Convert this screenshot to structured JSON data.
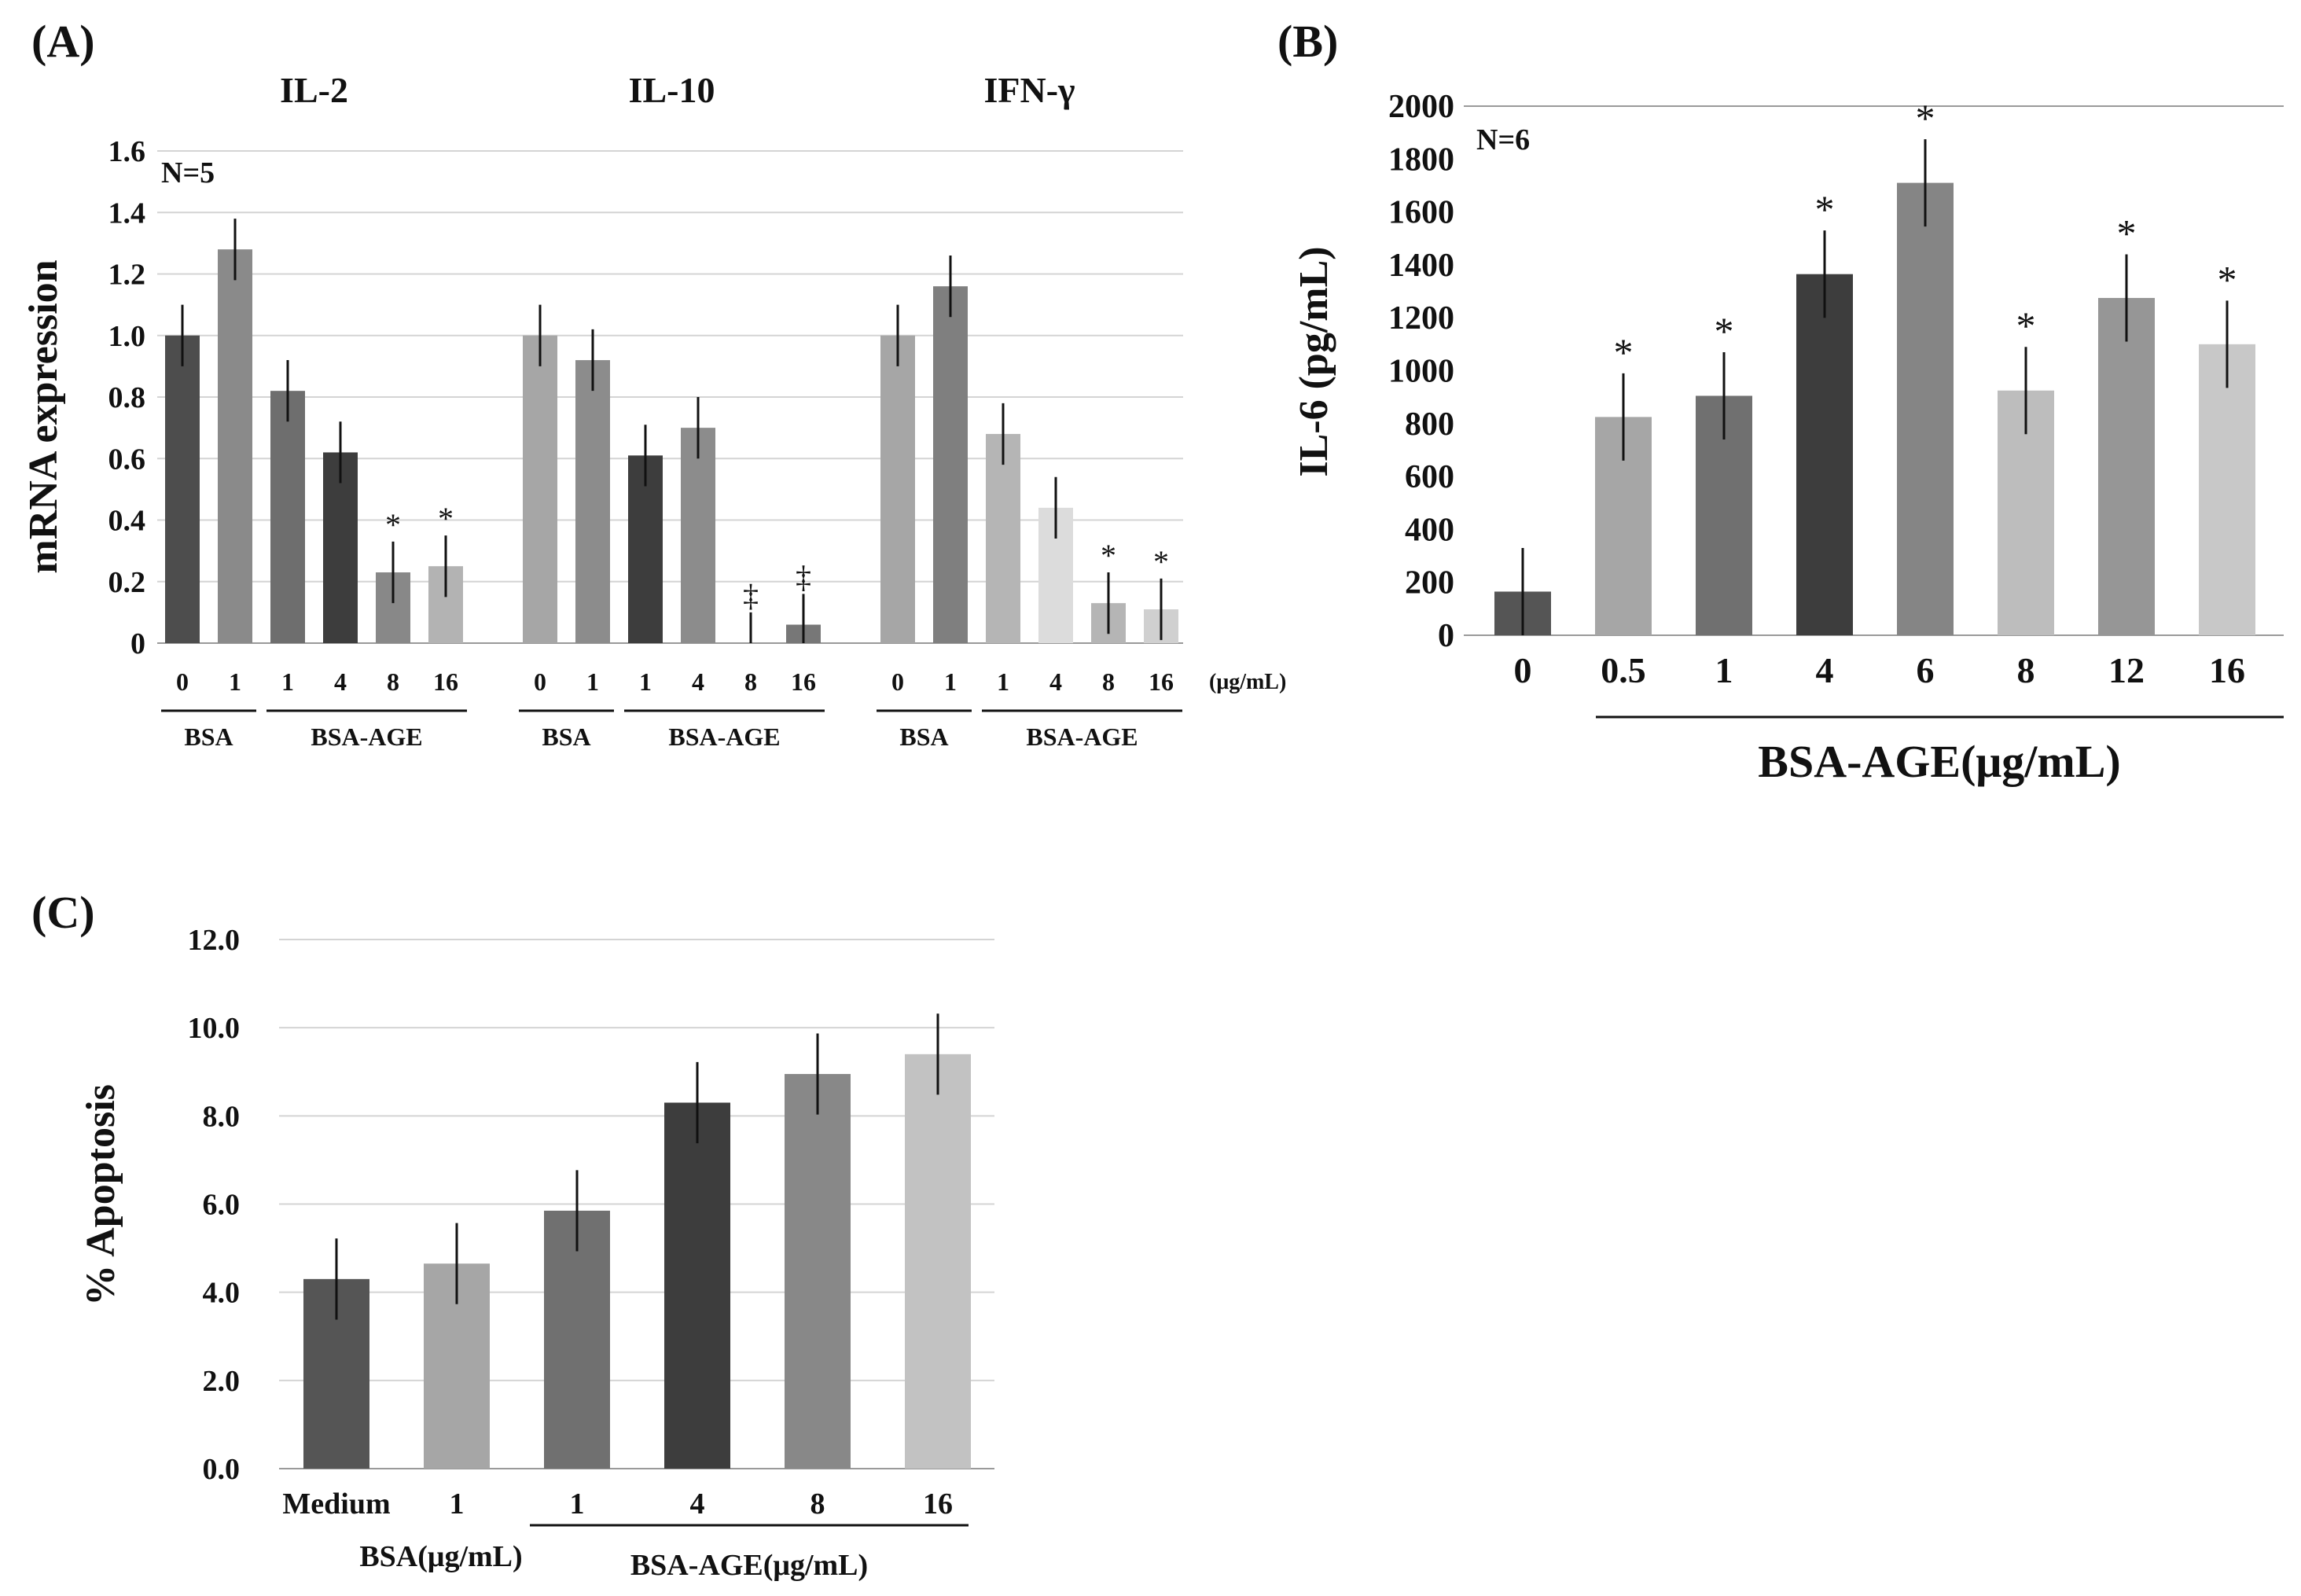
{
  "panels": {
    "a": "(A)",
    "b": "(B)",
    "c": "(C)"
  },
  "chart_data": [
    {
      "id": "A",
      "type": "bar",
      "ylabel": "mRNA expression",
      "ylim": [
        0,
        1.6
      ],
      "yticks": [
        "0",
        "0.2",
        "0.4",
        "0.6",
        "0.8",
        "1.0",
        "1.2",
        "1.4",
        "1.6"
      ],
      "grid": true,
      "annotation": "N=5",
      "unit": "(μg/mL)",
      "groups": [
        {
          "title": "IL-2",
          "categories": [
            "0",
            "1",
            "1",
            "4",
            "8",
            "16"
          ],
          "values": [
            1.0,
            1.28,
            0.82,
            0.62,
            0.23,
            0.25
          ],
          "errors": [
            0.1,
            0.1,
            0.1,
            0.1,
            0.1,
            0.1
          ],
          "significance": [
            "",
            "",
            "",
            "",
            "*",
            "*"
          ],
          "colors": [
            "#4d4d4d",
            "#8a8a8a",
            "#6e6e6e",
            "#3d3d3d",
            "#888888",
            "#b3b3b3"
          ]
        },
        {
          "title": "IL-10",
          "categories": [
            "0",
            "1",
            "1",
            "4",
            "8",
            "16"
          ],
          "values": [
            1.0,
            0.92,
            0.61,
            0.7,
            0.0,
            0.06
          ],
          "errors": [
            0.1,
            0.1,
            0.1,
            0.1,
            0.1,
            0.1
          ],
          "significance": [
            "",
            "",
            "",
            "",
            "‡",
            "‡"
          ],
          "colors": [
            "#a6a6a6",
            "#8c8c8c",
            "#3d3d3d",
            "#8c8c8c",
            "#aaaaaa",
            "#777777"
          ]
        },
        {
          "title": "IFN-γ",
          "categories": [
            "0",
            "1",
            "1",
            "4",
            "8",
            "16"
          ],
          "values": [
            1.0,
            1.16,
            0.68,
            0.44,
            0.13,
            0.11
          ],
          "errors": [
            0.1,
            0.1,
            0.1,
            0.1,
            0.1,
            0.1
          ],
          "significance": [
            "",
            "",
            "",
            "",
            "*",
            "*"
          ],
          "colors": [
            "#a6a6a6",
            "#7f7f7f",
            "#b5b5b5",
            "#dcdcdc",
            "#b5b5b5",
            "#d0d0d0"
          ]
        }
      ],
      "group_labels": [
        "BSA",
        "BSA-AGE"
      ]
    },
    {
      "id": "B",
      "type": "bar",
      "ylabel": "IL-6 (pg/mL)",
      "xlabel": "BSA-AGE(μg/mL)",
      "ylim": [
        0,
        2000
      ],
      "yticks": [
        "0",
        "200",
        "400",
        "600",
        "800",
        "1000",
        "1200",
        "1400",
        "1600",
        "1800",
        "2000"
      ],
      "grid": false,
      "annotation": "N=6",
      "categories": [
        "0",
        "0.5",
        "1",
        "4",
        "6",
        "8",
        "12",
        "16"
      ],
      "values": [
        165,
        825,
        905,
        1365,
        1710,
        925,
        1275,
        1100
      ],
      "errors": [
        165,
        165,
        165,
        165,
        165,
        165,
        165,
        165
      ],
      "significance": [
        "",
        "*",
        "*",
        "*",
        "*",
        "*",
        "*",
        "*"
      ],
      "colors": [
        "#555555",
        "#a6a6a6",
        "#707070",
        "#3d3d3d",
        "#858585",
        "#bdbdbd",
        "#969696",
        "#c8c8c8"
      ]
    },
    {
      "id": "C",
      "type": "bar",
      "ylabel": "% Apoptosis",
      "ylim": [
        0,
        12
      ],
      "yticks": [
        "0.0",
        "2.0",
        "4.0",
        "6.0",
        "8.0",
        "10.0",
        "12.0"
      ],
      "grid": true,
      "categories": [
        "Medium",
        "1",
        "1",
        "4",
        "8",
        "16"
      ],
      "values": [
        4.3,
        4.65,
        5.85,
        8.3,
        8.95,
        9.4
      ],
      "errors": [
        0.92,
        0.92,
        0.92,
        0.92,
        0.92,
        0.92
      ],
      "colors": [
        "#555555",
        "#a6a6a6",
        "#707070",
        "#3d3d3d",
        "#888888",
        "#c2c2c2"
      ],
      "group_labels": [
        "BSA(μg/mL)",
        "BSA-AGE(μg/mL)"
      ]
    }
  ]
}
